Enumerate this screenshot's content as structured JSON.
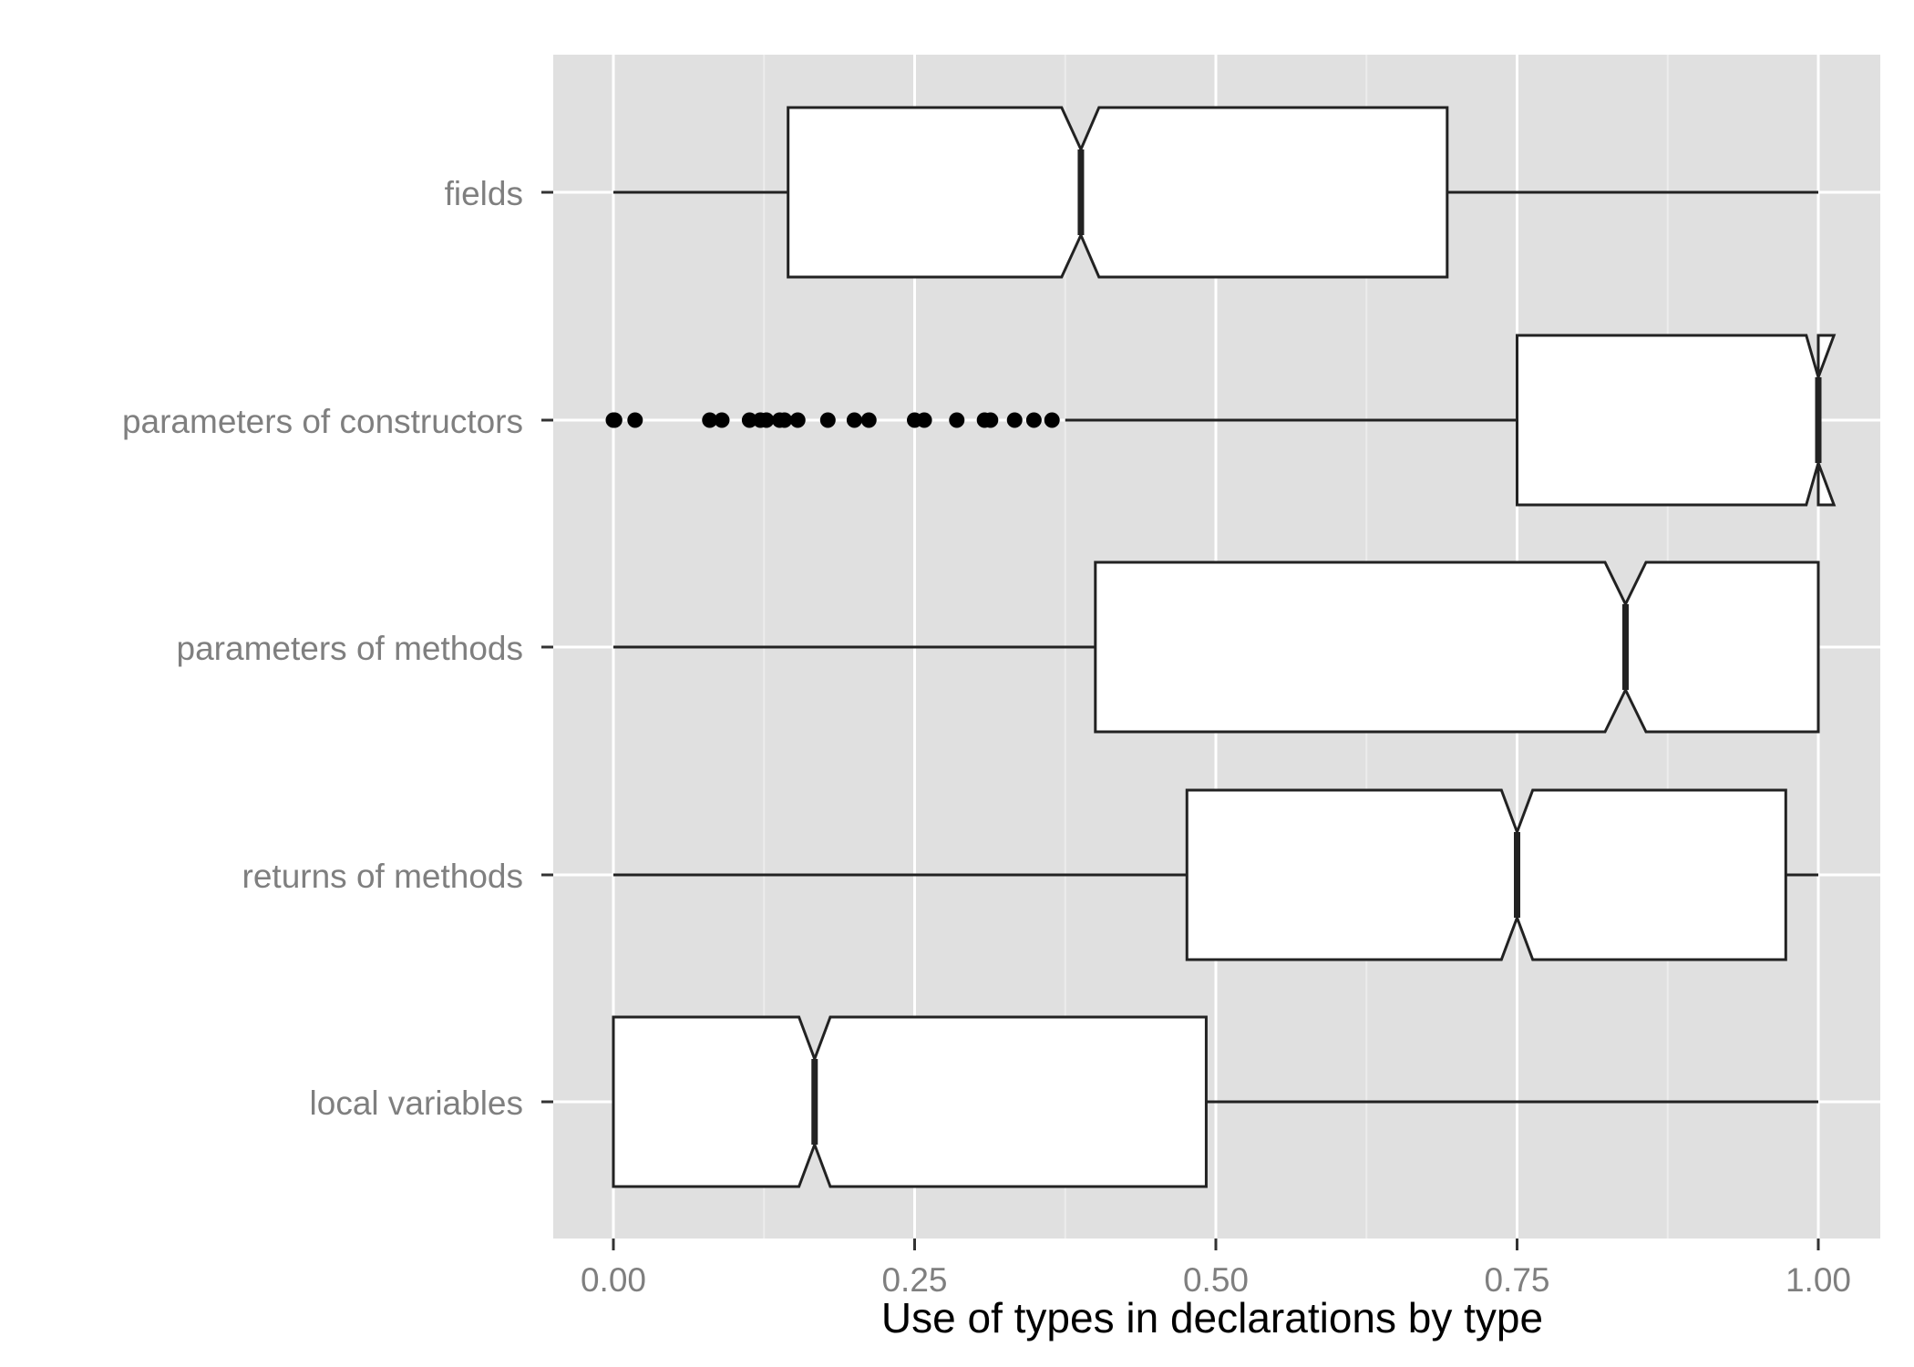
{
  "chart_data": {
    "type": "boxplot",
    "orientation": "horizontal",
    "notched": true,
    "title": "",
    "xlabel": "Use of types in declarations by type",
    "ylabel": "",
    "xlim": [
      -0.05,
      1.05
    ],
    "x_ticks": [
      0.0,
      0.25,
      0.5,
      0.75,
      1.0
    ],
    "x_tick_labels": [
      "0.00",
      "0.25",
      "0.50",
      "0.75",
      "1.00"
    ],
    "grid": true,
    "legend": "none",
    "colors": {
      "panel_background": "#e0e0e0",
      "grid_major": "#ffffff",
      "grid_minor": "#ececec",
      "box_fill": "#ffffff",
      "box_stroke": "#222222",
      "tick_label": "#7f7f7f",
      "axis_title": "#000000"
    },
    "categories": [
      "fields",
      "parameters of constructors",
      "parameters of methods",
      "returns of methods",
      "local variables"
    ],
    "boxes": [
      {
        "category": "fields",
        "whisker_low": 0.0,
        "q1": 0.145,
        "median": 0.388,
        "q3": 0.692,
        "whisker_high": 1.0,
        "notch_low": 0.372,
        "notch_high": 0.403,
        "outliers": []
      },
      {
        "category": "parameters of constructors",
        "whisker_low": 0.375,
        "q1": 0.75,
        "median": 1.0,
        "q3": 1.0,
        "whisker_high": 1.0,
        "notch_low": 0.99,
        "notch_high": 1.013,
        "outliers": [
          0.0,
          0.001,
          0.018,
          0.08,
          0.09,
          0.113,
          0.122,
          0.127,
          0.138,
          0.142,
          0.153,
          0.178,
          0.2,
          0.212,
          0.25,
          0.258,
          0.285,
          0.308,
          0.313,
          0.333,
          0.349,
          0.364
        ]
      },
      {
        "category": "parameters of methods",
        "whisker_low": 0.0,
        "q1": 0.4,
        "median": 0.84,
        "q3": 1.0,
        "whisker_high": 1.0,
        "notch_low": 0.823,
        "notch_high": 0.857,
        "outliers": []
      },
      {
        "category": "returns of methods",
        "whisker_low": 0.0,
        "q1": 0.476,
        "median": 0.75,
        "q3": 0.973,
        "whisker_high": 1.0,
        "notch_low": 0.737,
        "notch_high": 0.763,
        "outliers": []
      },
      {
        "category": "local variables",
        "whisker_low": 0.0,
        "q1": 0.0,
        "median": 0.167,
        "q3": 0.492,
        "whisker_high": 1.0,
        "notch_low": 0.154,
        "notch_high": 0.18,
        "outliers": []
      }
    ]
  }
}
